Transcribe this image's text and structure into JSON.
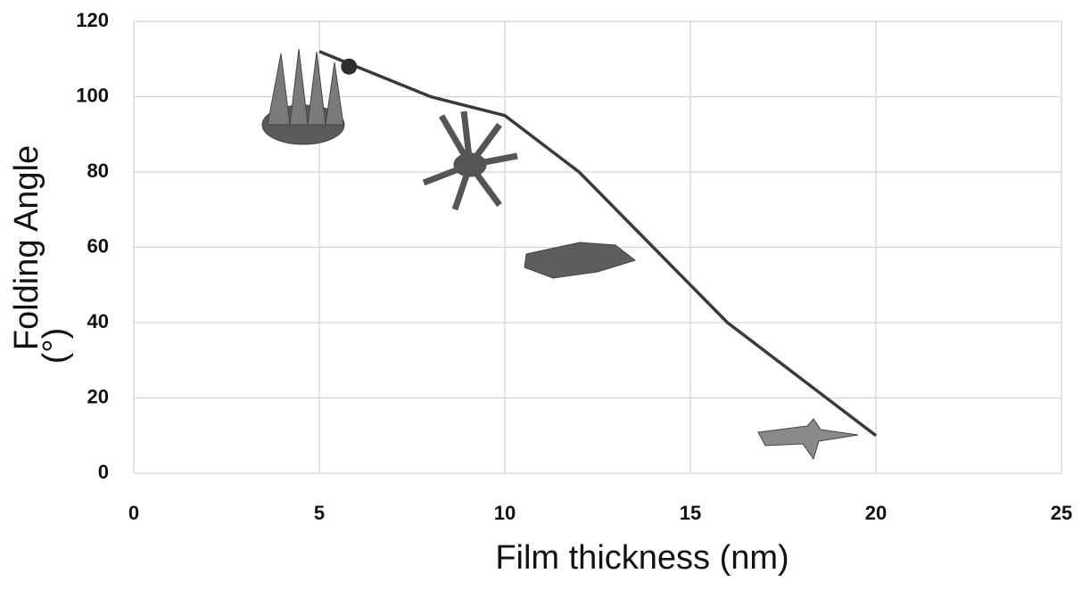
{
  "chart_data": {
    "type": "line",
    "xlabel": "Film thickness (nm)",
    "ylabel": [
      "Folding Angle",
      "(°)"
    ],
    "x": [
      5,
      8,
      10,
      12,
      15,
      16,
      20
    ],
    "series": [
      {
        "color": "#3a3a3a",
        "values": [
          112,
          100,
          95,
          80,
          50,
          40,
          10
        ]
      }
    ],
    "marker": {
      "x": 5.8,
      "y": 108,
      "color": "#2e2e2e"
    },
    "xlim": [
      0,
      25
    ],
    "xticks": [
      0,
      5,
      10,
      15,
      20,
      25
    ],
    "ylim": [
      0,
      120
    ],
    "yticks": [
      0,
      20,
      40,
      60,
      80,
      100,
      120
    ],
    "grid": true
  }
}
